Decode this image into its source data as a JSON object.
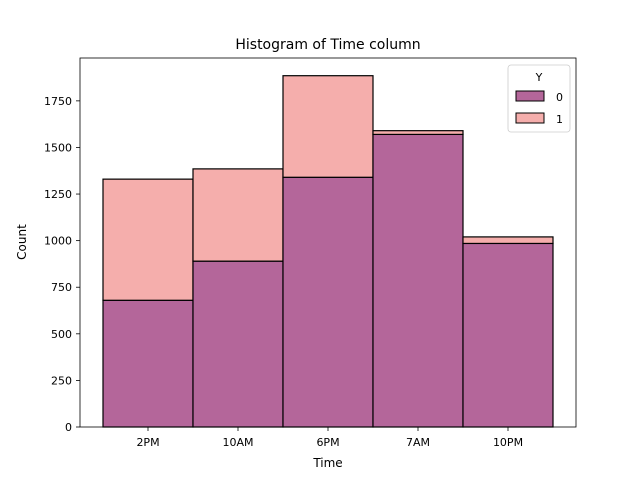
{
  "chart_data": {
    "type": "bar",
    "stacked": true,
    "title": "Histogram of Time column",
    "xlabel": "Time",
    "ylabel": "Count",
    "categories": [
      "2PM",
      "10AM",
      "6PM",
      "7AM",
      "10PM"
    ],
    "series": [
      {
        "name": "0",
        "values": [
          680,
          890,
          1340,
          1570,
          985
        ],
        "color": "#b4669a"
      },
      {
        "name": "1",
        "values": [
          650,
          495,
          545,
          20,
          35
        ],
        "color": "#f5aeac"
      }
    ],
    "ylim": [
      0,
      1980
    ],
    "yticks": [
      0,
      250,
      500,
      750,
      1000,
      1250,
      1500,
      1750
    ],
    "legend": {
      "title": "Y",
      "placement": "top-right"
    },
    "grid": false
  }
}
